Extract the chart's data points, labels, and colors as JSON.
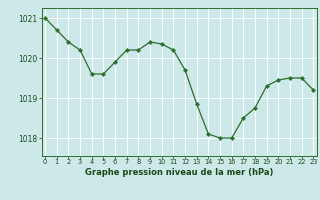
{
  "x": [
    0,
    1,
    2,
    3,
    4,
    5,
    6,
    7,
    8,
    9,
    10,
    11,
    12,
    13,
    14,
    15,
    16,
    17,
    18,
    19,
    20,
    21,
    22,
    23
  ],
  "y": [
    1021.0,
    1020.7,
    1020.4,
    1020.2,
    1019.6,
    1019.6,
    1019.9,
    1020.2,
    1020.2,
    1020.4,
    1020.35,
    1020.2,
    1019.7,
    1018.85,
    1018.1,
    1018.0,
    1018.0,
    1018.5,
    1018.75,
    1019.3,
    1019.45,
    1019.5,
    1019.5,
    1019.2
  ],
  "line_color": "#2d6e2d",
  "marker": "D",
  "marker_size": 2.2,
  "bg_color": "#cce8e8",
  "grid_color": "#ffffff",
  "xlabel": "Graphe pression niveau de la mer (hPa)",
  "xlabel_color": "#1a4a1a",
  "tick_label_color": "#1a4a1a",
  "ylim": [
    1017.55,
    1021.25
  ],
  "xlim": [
    -0.3,
    23.3
  ],
  "yticks": [
    1018,
    1019,
    1020,
    1021
  ],
  "xticks": [
    0,
    1,
    2,
    3,
    4,
    5,
    6,
    7,
    8,
    9,
    10,
    11,
    12,
    13,
    14,
    15,
    16,
    17,
    18,
    19,
    20,
    21,
    22,
    23
  ],
  "spine_color": "#2d6e2d"
}
